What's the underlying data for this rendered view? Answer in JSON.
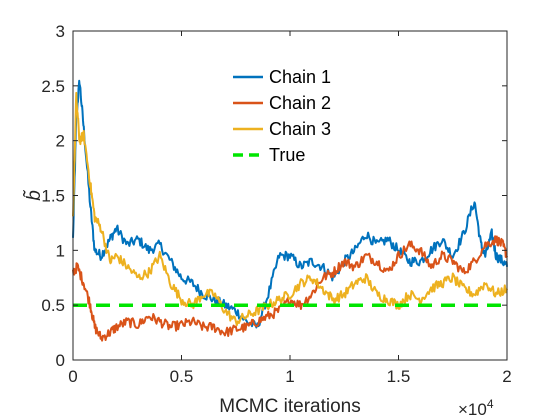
{
  "chart_data": {
    "type": "line",
    "xlabel": "MCMC iterations",
    "ylabel": "b̃",
    "x_exponent_label": "×10",
    "x_exponent_power": "4",
    "xlim": [
      0,
      2
    ],
    "ylim": [
      0,
      3
    ],
    "xticks": [
      "0",
      "0.5",
      "1",
      "1.5",
      "2"
    ],
    "yticks": [
      "0",
      "0.5",
      "1",
      "1.5",
      "2",
      "2.5",
      "3"
    ],
    "grid": false,
    "legend_position": "top-center",
    "series": [
      {
        "name": "Chain 1",
        "color": "#0072BD",
        "x": [
          0,
          0.015,
          0.03,
          0.05,
          0.08,
          0.1,
          0.13,
          0.17,
          0.2,
          0.25,
          0.3,
          0.35,
          0.4,
          0.45,
          0.5,
          0.55,
          0.6,
          0.65,
          0.7,
          0.75,
          0.8,
          0.85,
          0.9,
          0.95,
          1.0,
          1.05,
          1.1,
          1.15,
          1.2,
          1.25,
          1.3,
          1.35,
          1.4,
          1.45,
          1.5,
          1.55,
          1.6,
          1.65,
          1.7,
          1.75,
          1.8,
          1.85,
          1.88,
          1.9,
          1.93,
          1.95,
          1.98,
          2.0
        ],
        "y": [
          1.1,
          2.2,
          2.55,
          2.1,
          1.4,
          1.0,
          0.95,
          1.1,
          1.2,
          1.05,
          1.1,
          1.0,
          1.05,
          0.9,
          0.75,
          0.7,
          0.6,
          0.55,
          0.5,
          0.45,
          0.35,
          0.3,
          0.6,
          0.95,
          0.95,
          0.85,
          0.9,
          0.85,
          0.75,
          0.9,
          1.0,
          1.15,
          1.05,
          1.1,
          1.0,
          0.9,
          0.9,
          1.0,
          1.1,
          0.95,
          1.15,
          1.45,
          1.05,
          0.95,
          1.15,
          0.95,
          0.9,
          0.85
        ]
      },
      {
        "name": "Chain 2",
        "color": "#D95319",
        "x": [
          0,
          0.02,
          0.05,
          0.08,
          0.1,
          0.13,
          0.17,
          0.2,
          0.25,
          0.3,
          0.35,
          0.4,
          0.45,
          0.5,
          0.55,
          0.6,
          0.65,
          0.7,
          0.75,
          0.8,
          0.85,
          0.9,
          0.95,
          1.0,
          1.05,
          1.1,
          1.15,
          1.2,
          1.25,
          1.3,
          1.35,
          1.4,
          1.45,
          1.5,
          1.55,
          1.6,
          1.65,
          1.7,
          1.75,
          1.8,
          1.85,
          1.9,
          1.95,
          1.98,
          2.0
        ],
        "y": [
          0.8,
          0.85,
          0.7,
          0.5,
          0.3,
          0.2,
          0.25,
          0.3,
          0.35,
          0.32,
          0.4,
          0.35,
          0.3,
          0.32,
          0.35,
          0.3,
          0.3,
          0.25,
          0.28,
          0.3,
          0.35,
          0.4,
          0.45,
          0.55,
          0.5,
          0.6,
          0.75,
          0.8,
          0.9,
          0.85,
          0.95,
          0.9,
          0.8,
          0.95,
          1.05,
          1.0,
          0.85,
          0.95,
          0.9,
          0.8,
          0.9,
          1.05,
          1.1,
          1.05,
          0.95
        ]
      },
      {
        "name": "Chain 3",
        "color": "#EDB120",
        "x": [
          0,
          0.015,
          0.03,
          0.05,
          0.08,
          0.1,
          0.13,
          0.17,
          0.2,
          0.25,
          0.3,
          0.35,
          0.4,
          0.45,
          0.5,
          0.55,
          0.6,
          0.65,
          0.7,
          0.75,
          0.8,
          0.85,
          0.9,
          0.95,
          1.0,
          1.05,
          1.1,
          1.15,
          1.2,
          1.25,
          1.3,
          1.35,
          1.4,
          1.45,
          1.5,
          1.55,
          1.6,
          1.65,
          1.7,
          1.75,
          1.8,
          1.85,
          1.9,
          1.95,
          2.0
        ],
        "y": [
          1.3,
          2.4,
          2.0,
          2.05,
          1.6,
          1.3,
          1.2,
          0.9,
          0.95,
          0.85,
          0.75,
          0.8,
          0.95,
          0.7,
          0.55,
          0.5,
          0.6,
          0.6,
          0.45,
          0.35,
          0.4,
          0.45,
          0.5,
          0.55,
          0.6,
          0.7,
          0.75,
          0.65,
          0.55,
          0.6,
          0.7,
          0.75,
          0.6,
          0.55,
          0.5,
          0.6,
          0.55,
          0.65,
          0.7,
          0.75,
          0.65,
          0.6,
          0.7,
          0.6,
          0.65
        ]
      },
      {
        "name": "True",
        "color": "#00E500",
        "style": "dashed",
        "x": [
          0,
          2
        ],
        "y": [
          0.5,
          0.5
        ]
      }
    ]
  }
}
